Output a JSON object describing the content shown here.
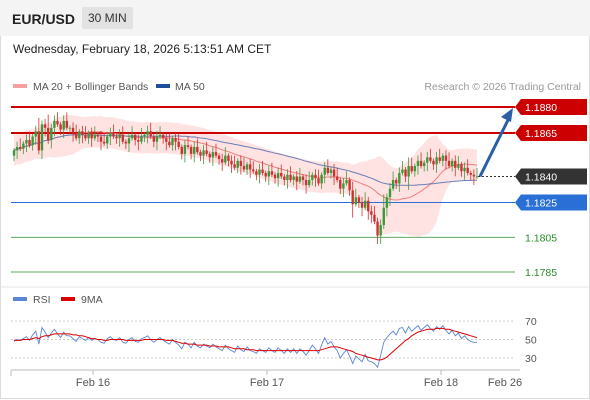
{
  "header": {
    "symbol": "EUR/USD",
    "timeframe": "30 MIN"
  },
  "datetime": "Wednesday, February 18, 2026 5:13:51 AM CET",
  "colors": {
    "up": "#3a9a3a",
    "down": "#d13030",
    "resistance": "#cc0000",
    "support": "#2a6fd6",
    "support2": "#2a8a2a",
    "ma20": "#f07f7f",
    "ma50": "#6a7fb8",
    "band": "#ffd8d8",
    "arrow": "#2a5fa8",
    "rsi": "#5a86d6",
    "rsi_ma": "#dd0000"
  },
  "chart_data": [
    {
      "type": "candlestick",
      "legend": [
        {
          "name": "MA 20 + Bollinger Bands",
          "color": "#f4a0a0"
        },
        {
          "name": "MA 50",
          "color": "#1f4e9a"
        }
      ],
      "legend_placement": "top-left",
      "credit": "Research © 2026 Trading Central",
      "ylim": [
        1.1772,
        1.1888
      ],
      "x_ticks": [
        "Feb 16",
        "Feb 17",
        "Feb 18",
        "Feb 26"
      ],
      "levels": [
        {
          "value": 1.188,
          "label": "1.1880",
          "kind": "resistance"
        },
        {
          "value": 1.1865,
          "label": "1.1865",
          "kind": "resistance"
        },
        {
          "value": 1.184,
          "label": "1.1840",
          "kind": "current"
        },
        {
          "value": 1.1825,
          "label": "1.1825",
          "kind": "support"
        },
        {
          "value": 1.1805,
          "label": "1.1805",
          "kind": "support2"
        },
        {
          "value": 1.1785,
          "label": "1.1785",
          "kind": "support2"
        }
      ],
      "projection": {
        "from": 1.184,
        "to": 1.188
      },
      "close": [
        1.1855,
        1.1857,
        1.1856,
        1.1859,
        1.1861,
        1.1858,
        1.1863,
        1.1866,
        1.1855,
        1.187,
        1.1868,
        1.1861,
        1.1868,
        1.1872,
        1.187,
        1.1867,
        1.1872,
        1.1868,
        1.1868,
        1.1865,
        1.1862,
        1.1866,
        1.1864,
        1.1862,
        1.1865,
        1.1862,
        1.1864,
        1.1863,
        1.186,
        1.1859,
        1.1863,
        1.1865,
        1.1863,
        1.1862,
        1.1864,
        1.186,
        1.1859,
        1.1862,
        1.1864,
        1.1861,
        1.186,
        1.1863,
        1.1864,
        1.1866,
        1.1863,
        1.186,
        1.1863,
        1.1864,
        1.1862,
        1.186,
        1.1858,
        1.1862,
        1.186,
        1.1857,
        1.1853,
        1.1858,
        1.1857,
        1.1853,
        1.1857,
        1.1854,
        1.1852,
        1.1855,
        1.1853,
        1.1851,
        1.1854,
        1.1852,
        1.185,
        1.1848,
        1.1852,
        1.1849,
        1.1847,
        1.1845,
        1.1849,
        1.1846,
        1.1844,
        1.1847,
        1.1844,
        1.1843,
        1.1841,
        1.1844,
        1.1842,
        1.184,
        1.1843,
        1.1841,
        1.1839,
        1.1842,
        1.184,
        1.1838,
        1.1841,
        1.1838,
        1.184,
        1.1837,
        1.184,
        1.1838,
        1.1835,
        1.1838,
        1.1841,
        1.1839,
        1.1836,
        1.1841,
        1.1845,
        1.1842,
        1.1844,
        1.184,
        1.1838,
        1.1833,
        1.1836,
        1.1838,
        1.1832,
        1.1824,
        1.1828,
        1.1825,
        1.1822,
        1.1826,
        1.182,
        1.1818,
        1.1814,
        1.1806,
        1.1812,
        1.1822,
        1.1828,
        1.1833,
        1.1838,
        1.1836,
        1.1842,
        1.1844,
        1.184,
        1.1846,
        1.1843,
        1.1846,
        1.1849,
        1.1846,
        1.1848,
        1.1851,
        1.1849,
        1.1847,
        1.1851,
        1.1849,
        1.1852,
        1.1849,
        1.1846,
        1.1849,
        1.1845,
        1.1847,
        1.1843,
        1.1845,
        1.1842,
        1.1841,
        1.184,
        1.184
      ]
    },
    {
      "type": "line",
      "legend": [
        {
          "name": "RSI",
          "color": "#5a86d6"
        },
        {
          "name": "9MA",
          "color": "#dd0000"
        }
      ],
      "y_ticks": [
        70,
        50,
        30
      ],
      "ylim": [
        20,
        80
      ],
      "rsi": [
        48,
        50,
        49,
        51,
        53,
        49,
        55,
        59,
        45,
        63,
        58,
        52,
        57,
        61,
        56,
        52,
        58,
        54,
        54,
        51,
        48,
        53,
        51,
        49,
        52,
        49,
        51,
        50,
        47,
        46,
        51,
        53,
        50,
        49,
        52,
        47,
        46,
        50,
        52,
        48,
        47,
        51,
        52,
        54,
        50,
        47,
        50,
        52,
        49,
        47,
        45,
        50,
        47,
        44,
        40,
        47,
        45,
        41,
        47,
        43,
        41,
        45,
        43,
        41,
        45,
        42,
        40,
        38,
        44,
        40,
        38,
        36,
        43,
        39,
        37,
        42,
        38,
        37,
        35,
        40,
        38,
        36,
        41,
        38,
        36,
        41,
        38,
        35,
        40,
        36,
        40,
        35,
        40,
        37,
        33,
        38,
        44,
        40,
        35,
        44,
        52,
        45,
        48,
        42,
        38,
        30,
        35,
        39,
        32,
        24,
        32,
        29,
        26,
        34,
        27,
        26,
        24,
        20,
        33,
        47,
        52,
        56,
        59,
        55,
        62,
        63,
        57,
        64,
        59,
        62,
        65,
        60,
        63,
        66,
        62,
        59,
        64,
        61,
        65,
        60,
        56,
        60,
        54,
        57,
        51,
        54,
        50,
        48,
        47,
        47
      ],
      "rsi_ma": [
        49,
        49,
        49,
        50,
        50,
        50,
        51,
        52,
        51,
        53,
        54,
        54,
        55,
        56,
        56,
        56,
        56,
        56,
        56,
        55,
        55,
        54,
        54,
        53,
        52,
        51,
        51,
        50,
        50,
        49,
        49,
        50,
        50,
        50,
        50,
        50,
        49,
        49,
        49,
        49,
        49,
        49,
        50,
        50,
        50,
        50,
        50,
        50,
        50,
        49,
        49,
        49,
        48,
        47,
        46,
        46,
        45,
        45,
        45,
        44,
        44,
        44,
        44,
        43,
        43,
        43,
        42,
        42,
        42,
        42,
        41,
        40,
        40,
        40,
        40,
        39,
        39,
        39,
        38,
        38,
        38,
        38,
        38,
        38,
        38,
        38,
        38,
        38,
        38,
        38,
        38,
        38,
        38,
        38,
        38,
        38,
        38,
        38,
        38,
        39,
        40,
        41,
        42,
        42,
        42,
        41,
        40,
        39,
        38,
        37,
        35,
        34,
        33,
        32,
        31,
        30,
        29,
        28,
        28,
        29,
        31,
        34,
        37,
        40,
        43,
        46,
        49,
        51,
        54,
        56,
        58,
        59,
        60,
        61,
        61,
        61,
        62,
        62,
        62,
        61,
        61,
        60,
        59,
        58,
        57,
        56,
        55,
        54,
        53,
        52
      ]
    }
  ]
}
